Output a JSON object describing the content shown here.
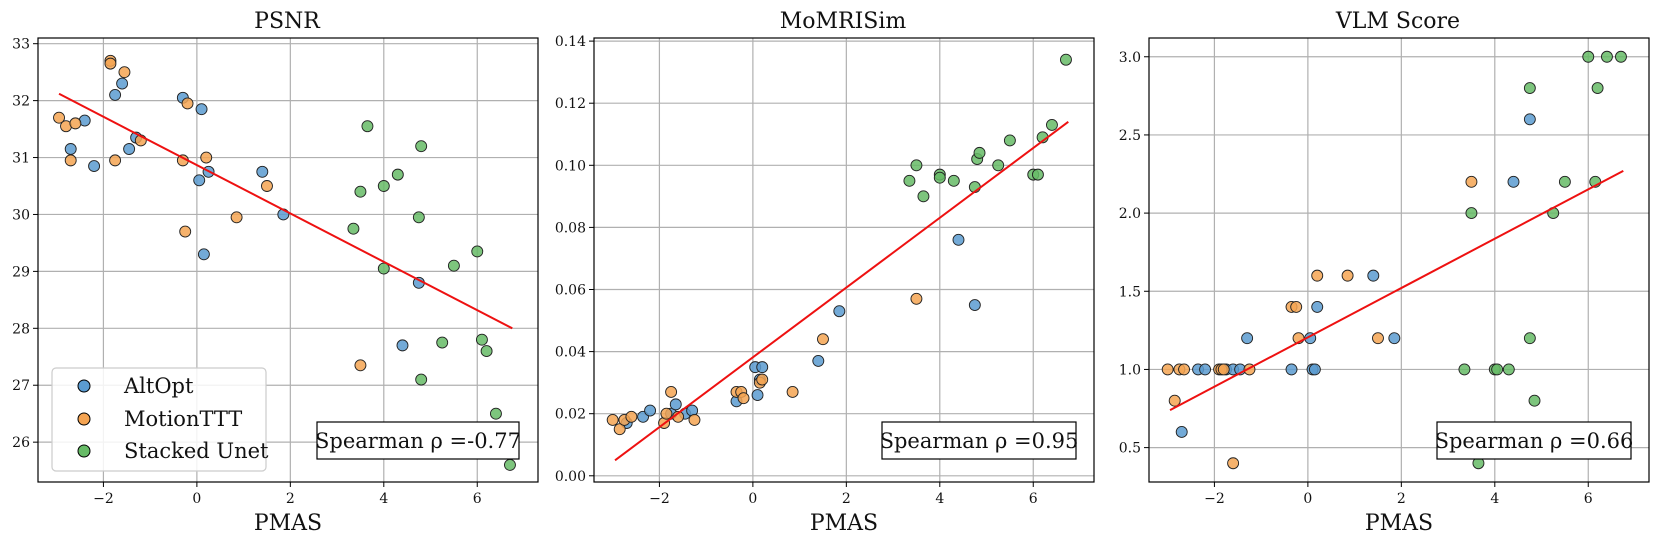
{
  "colors": {
    "altopt": "#5B9BD0",
    "motionttt": "#F5A452",
    "stacked_unet": "#66BB66",
    "fit_line": "#EE1111",
    "grid": "#B0B0B0"
  },
  "legend": {
    "items": [
      {
        "label": "AltOpt",
        "color": "#5B9BD0"
      },
      {
        "label": "MotionTTT",
        "color": "#F5A452"
      },
      {
        "label": "Stacked Unet",
        "color": "#66BB66"
      }
    ]
  },
  "chart_data": [
    {
      "type": "scatter",
      "title": "PSNR",
      "xlabel": "PMAS",
      "ylabel": "",
      "xlim": [
        -3.4,
        7.3
      ],
      "ylim": [
        25.3,
        33.1
      ],
      "xticks": [
        -2,
        0,
        2,
        4,
        6
      ],
      "xtick_labels": [
        "−2",
        "0",
        "2",
        "4",
        "6"
      ],
      "yticks": [
        26,
        27,
        28,
        29,
        30,
        31,
        32,
        33
      ],
      "ytick_labels": [
        "26",
        "27",
        "28",
        "29",
        "30",
        "31",
        "32",
        "33"
      ],
      "grid": true,
      "annotation": "Spearman ρ =-0.77",
      "fit_line": {
        "x": [
          -2.95,
          6.75
        ],
        "y": [
          32.12,
          28.0
        ]
      },
      "series": [
        {
          "name": "AltOpt",
          "points": [
            [
              -2.7,
              31.15
            ],
            [
              -2.4,
              31.65
            ],
            [
              -2.2,
              30.85
            ],
            [
              -1.75,
              32.1
            ],
            [
              -1.6,
              32.3
            ],
            [
              -1.45,
              31.15
            ],
            [
              -1.3,
              31.35
            ],
            [
              -0.3,
              32.05
            ],
            [
              0.05,
              30.6
            ],
            [
              0.1,
              31.85
            ],
            [
              0.15,
              29.3
            ],
            [
              0.25,
              30.75
            ],
            [
              1.4,
              30.75
            ],
            [
              1.85,
              30.0
            ],
            [
              4.4,
              27.7
            ],
            [
              4.75,
              28.8
            ]
          ]
        },
        {
          "name": "MotionTTT",
          "points": [
            [
              -2.95,
              31.7
            ],
            [
              -2.8,
              31.55
            ],
            [
              -2.7,
              30.95
            ],
            [
              -2.6,
              31.6
            ],
            [
              -1.85,
              32.7
            ],
            [
              -1.85,
              32.65
            ],
            [
              -1.75,
              30.95
            ],
            [
              -1.55,
              32.5
            ],
            [
              -1.2,
              31.3
            ],
            [
              -0.3,
              30.95
            ],
            [
              -0.2,
              31.95
            ],
            [
              -0.25,
              29.7
            ],
            [
              0.2,
              31.0
            ],
            [
              0.85,
              29.95
            ],
            [
              1.5,
              30.5
            ],
            [
              3.5,
              27.35
            ]
          ]
        },
        {
          "name": "Stacked Unet",
          "points": [
            [
              3.35,
              29.75
            ],
            [
              3.5,
              30.4
            ],
            [
              3.65,
              31.55
            ],
            [
              4.0,
              30.5
            ],
            [
              4.0,
              29.05
            ],
            [
              4.3,
              30.7
            ],
            [
              4.75,
              29.95
            ],
            [
              4.8,
              31.2
            ],
            [
              4.8,
              27.1
            ],
            [
              5.25,
              27.75
            ],
            [
              5.5,
              29.1
            ],
            [
              6.0,
              29.35
            ],
            [
              6.1,
              27.8
            ],
            [
              6.2,
              27.6
            ],
            [
              6.4,
              26.5
            ],
            [
              6.7,
              25.6
            ]
          ]
        }
      ]
    },
    {
      "type": "scatter",
      "title": "MoMRISim",
      "xlabel": "PMAS",
      "ylabel": "",
      "xlim": [
        -3.4,
        7.3
      ],
      "ylim": [
        -0.002,
        0.141
      ],
      "xticks": [
        -2,
        0,
        2,
        4,
        6
      ],
      "xtick_labels": [
        "−2",
        "0",
        "2",
        "4",
        "6"
      ],
      "yticks": [
        0.0,
        0.02,
        0.04,
        0.06,
        0.08,
        0.1,
        0.12,
        0.14
      ],
      "ytick_labels": [
        "0.00",
        "0.02",
        "0.04",
        "0.06",
        "0.08",
        "0.10",
        "0.12",
        "0.14"
      ],
      "grid": true,
      "annotation": "Spearman ρ =0.95",
      "fit_line": {
        "x": [
          -2.95,
          6.75
        ],
        "y": [
          0.005,
          0.114
        ]
      },
      "series": [
        {
          "name": "AltOpt",
          "points": [
            [
              -2.7,
              0.017
            ],
            [
              -2.35,
              0.019
            ],
            [
              -2.2,
              0.021
            ],
            [
              -1.75,
              0.02
            ],
            [
              -1.65,
              0.023
            ],
            [
              -1.45,
              0.02
            ],
            [
              -1.3,
              0.021
            ],
            [
              -0.35,
              0.024
            ],
            [
              0.05,
              0.035
            ],
            [
              0.1,
              0.026
            ],
            [
              0.15,
              0.031
            ],
            [
              0.2,
              0.035
            ],
            [
              1.4,
              0.037
            ],
            [
              1.85,
              0.053
            ],
            [
              4.4,
              0.076
            ],
            [
              4.75,
              0.055
            ]
          ]
        },
        {
          "name": "MotionTTT",
          "points": [
            [
              -3.0,
              0.018
            ],
            [
              -2.85,
              0.015
            ],
            [
              -2.75,
              0.018
            ],
            [
              -2.6,
              0.019
            ],
            [
              -1.9,
              0.017
            ],
            [
              -1.85,
              0.02
            ],
            [
              -1.75,
              0.027
            ],
            [
              -1.6,
              0.019
            ],
            [
              -1.25,
              0.018
            ],
            [
              -0.35,
              0.027
            ],
            [
              -0.25,
              0.027
            ],
            [
              -0.2,
              0.025
            ],
            [
              0.15,
              0.03
            ],
            [
              0.2,
              0.031
            ],
            [
              0.85,
              0.027
            ],
            [
              1.5,
              0.044
            ],
            [
              3.5,
              0.057
            ]
          ]
        },
        {
          "name": "Stacked Unet",
          "points": [
            [
              3.35,
              0.095
            ],
            [
              3.5,
              0.1
            ],
            [
              3.65,
              0.09
            ],
            [
              4.0,
              0.097
            ],
            [
              4.0,
              0.096
            ],
            [
              4.3,
              0.095
            ],
            [
              4.75,
              0.093
            ],
            [
              4.8,
              0.102
            ],
            [
              4.85,
              0.104
            ],
            [
              5.25,
              0.1
            ],
            [
              5.5,
              0.108
            ],
            [
              6.0,
              0.097
            ],
            [
              6.1,
              0.097
            ],
            [
              6.2,
              0.109
            ],
            [
              6.4,
              0.113
            ],
            [
              6.7,
              0.134
            ]
          ]
        }
      ]
    },
    {
      "type": "scatter",
      "title": "VLM Score",
      "xlabel": "PMAS",
      "ylabel": "",
      "xlim": [
        -3.4,
        7.3
      ],
      "ylim": [
        0.28,
        3.12
      ],
      "xticks": [
        -2,
        0,
        2,
        4,
        6
      ],
      "xtick_labels": [
        "−2",
        "0",
        "2",
        "4",
        "6"
      ],
      "yticks": [
        0.5,
        1.0,
        1.5,
        2.0,
        2.5,
        3.0
      ],
      "ytick_labels": [
        "0.5",
        "1.0",
        "1.5",
        "2.0",
        "2.5",
        "3.0"
      ],
      "grid": true,
      "annotation": "Spearman ρ =0.66",
      "fit_line": {
        "x": [
          -2.95,
          6.75
        ],
        "y": [
          0.74,
          2.27
        ]
      },
      "series": [
        {
          "name": "AltOpt",
          "points": [
            [
              -2.7,
              0.6
            ],
            [
              -2.35,
              1.0
            ],
            [
              -2.2,
              1.0
            ],
            [
              -1.75,
              1.0
            ],
            [
              -1.6,
              1.0
            ],
            [
              -1.45,
              1.0
            ],
            [
              -1.3,
              1.2
            ],
            [
              -0.35,
              1.0
            ],
            [
              0.05,
              1.2
            ],
            [
              0.1,
              1.0
            ],
            [
              0.15,
              1.0
            ],
            [
              0.2,
              1.4
            ],
            [
              1.4,
              1.6
            ],
            [
              1.85,
              1.2
            ],
            [
              4.4,
              2.2
            ],
            [
              4.75,
              2.6
            ]
          ]
        },
        {
          "name": "MotionTTT",
          "points": [
            [
              -3.0,
              1.0
            ],
            [
              -2.85,
              0.8
            ],
            [
              -2.75,
              1.0
            ],
            [
              -2.65,
              1.0
            ],
            [
              -1.9,
              1.0
            ],
            [
              -1.85,
              1.0
            ],
            [
              -1.8,
              1.0
            ],
            [
              -1.6,
              0.4
            ],
            [
              -1.25,
              1.0
            ],
            [
              -0.35,
              1.4
            ],
            [
              -0.25,
              1.4
            ],
            [
              -0.2,
              1.2
            ],
            [
              0.2,
              1.6
            ],
            [
              0.85,
              1.6
            ],
            [
              1.5,
              1.2
            ],
            [
              3.5,
              2.2
            ]
          ]
        },
        {
          "name": "Stacked Unet",
          "points": [
            [
              3.35,
              1.0
            ],
            [
              3.5,
              2.0
            ],
            [
              3.65,
              0.4
            ],
            [
              4.0,
              1.0
            ],
            [
              4.05,
              1.0
            ],
            [
              4.3,
              1.0
            ],
            [
              4.75,
              2.8
            ],
            [
              4.75,
              1.2
            ],
            [
              4.85,
              0.8
            ],
            [
              5.25,
              2.0
            ],
            [
              5.5,
              2.2
            ],
            [
              6.0,
              3.0
            ],
            [
              6.15,
              2.2
            ],
            [
              6.2,
              2.8
            ],
            [
              6.4,
              3.0
            ],
            [
              6.7,
              3.0
            ]
          ]
        }
      ]
    }
  ]
}
